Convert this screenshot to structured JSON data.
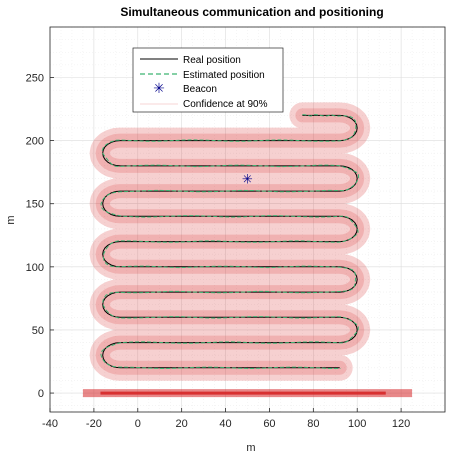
{
  "chart_data": {
    "type": "line",
    "title": "Simultaneous communication and positioning",
    "xlabel": "m",
    "ylabel": "m",
    "xlim": [
      -40,
      140
    ],
    "ylim": [
      -15,
      290
    ],
    "xticks": [
      -40,
      -20,
      0,
      20,
      40,
      60,
      80,
      100,
      120
    ],
    "yticks": [
      0,
      50,
      100,
      150,
      200,
      250
    ],
    "grid": true,
    "legend_position": "top-center",
    "legend": [
      "Real position",
      "Estimated position",
      "Beacon",
      "Confidence at 90%"
    ],
    "colors": {
      "real": "#000000",
      "estimated": "#3cb371",
      "beacon": "#00008b",
      "confidence": "#d62728"
    },
    "beacon": {
      "x": 50,
      "y": 170
    },
    "path_rows": [
      {
        "y": 220,
        "x_from": 75,
        "x_to": 92
      },
      {
        "y": 200,
        "x_from": 92,
        "x_to": -8
      },
      {
        "y": 180,
        "x_from": -8,
        "x_to": 92
      },
      {
        "y": 160,
        "x_from": 92,
        "x_to": -8
      },
      {
        "y": 140,
        "x_from": -8,
        "x_to": 92
      },
      {
        "y": 120,
        "x_from": 92,
        "x_to": -8
      },
      {
        "y": 100,
        "x_from": -8,
        "x_to": 92
      },
      {
        "y": 80,
        "x_from": 92,
        "x_to": -8
      },
      {
        "y": 60,
        "x_from": -8,
        "x_to": 92
      },
      {
        "y": 40,
        "x_from": 92,
        "x_to": -8
      },
      {
        "y": 20,
        "x_from": -8,
        "x_to": 92
      }
    ],
    "bottom_band": {
      "y": 0,
      "x_from": -25,
      "x_to": 125
    }
  }
}
